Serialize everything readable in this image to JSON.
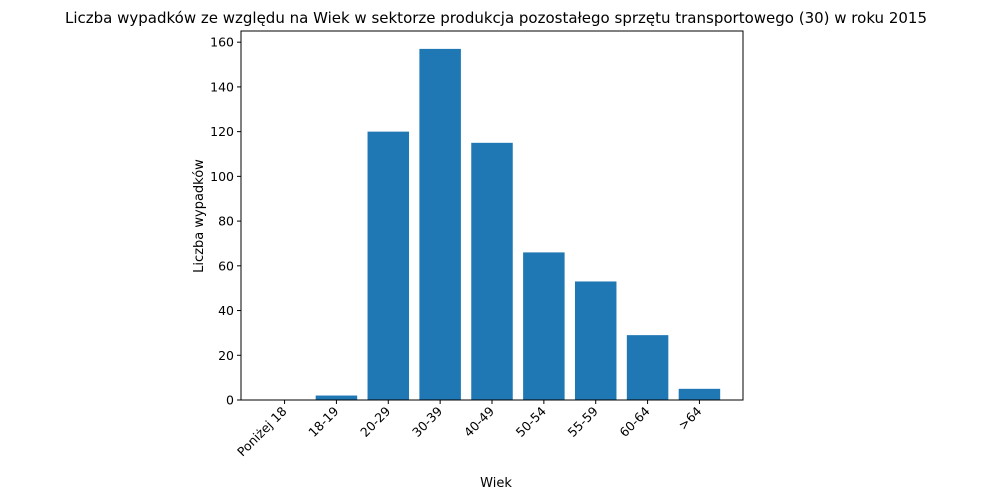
{
  "chart_data": {
    "type": "bar",
    "title": "Liczba wypadków ze względu na Wiek w sektorze produkcja pozostałego sprzętu transportowego  (30)  w roku 2015",
    "xlabel": "Wiek",
    "ylabel": "Liczba wypadków",
    "categories": [
      "Poniżej 18",
      "18-19",
      "20-29",
      "30-39",
      "40-49",
      "50-54",
      "55-59",
      "60-64",
      ">64"
    ],
    "values": [
      0,
      2,
      120,
      157,
      115,
      66,
      53,
      29,
      5
    ],
    "ylim": [
      0,
      165
    ],
    "yticks": [
      0,
      20,
      40,
      60,
      80,
      100,
      120,
      140,
      160
    ],
    "grid": false,
    "bar_color": "#1f77b4"
  }
}
